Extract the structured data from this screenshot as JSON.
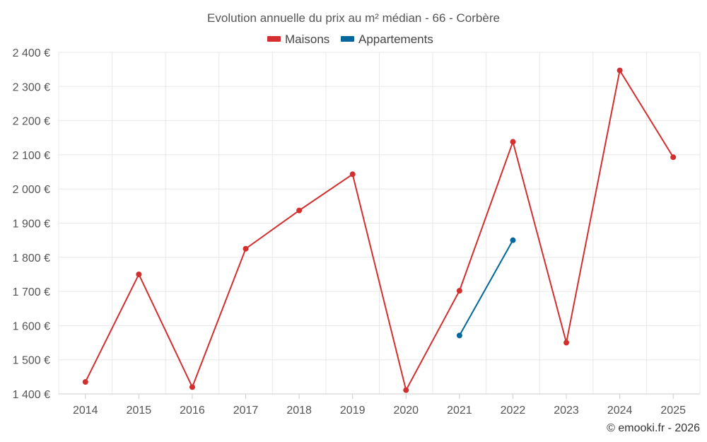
{
  "chart_data": {
    "type": "line",
    "title": "Evolution annuelle du prix au m² médian - 66 - Corbère",
    "categories": [
      "2014",
      "2015",
      "2016",
      "2017",
      "2018",
      "2019",
      "2020",
      "2021",
      "2022",
      "2023",
      "2024",
      "2025"
    ],
    "series": [
      {
        "name": "Maisons",
        "color": "#d32f2f",
        "values": [
          1435,
          1750,
          1420,
          1825,
          1937,
          2043,
          1411,
          1702,
          2138,
          1550,
          2347,
          2093
        ]
      },
      {
        "name": "Appartements",
        "color": "#03679b",
        "values": [
          null,
          null,
          null,
          null,
          null,
          null,
          null,
          1571,
          1850,
          null,
          null,
          null
        ]
      }
    ],
    "yticks": [
      "1 400 €",
      "1 500 €",
      "1 600 €",
      "1 700 €",
      "1 800 €",
      "1 900 €",
      "2 000 €",
      "2 100 €",
      "2 200 €",
      "2 300 €",
      "2 400 €"
    ],
    "ylim": [
      1400,
      2400
    ],
    "ytick_step": 100,
    "xlabel": "",
    "ylabel": "",
    "grid": true,
    "legend_position": "top-center"
  },
  "credit": "© emooki.fr - 2026"
}
